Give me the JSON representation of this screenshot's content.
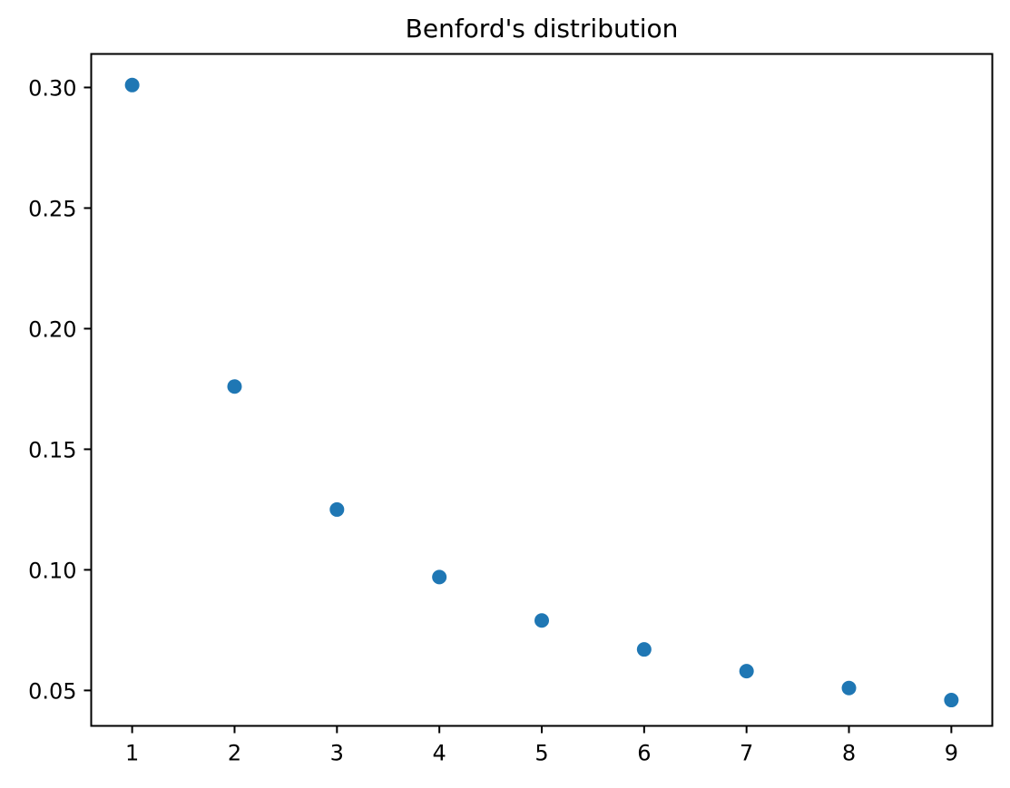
{
  "figure": {
    "background_color": "#ffffff"
  },
  "chart_data": {
    "type": "scatter",
    "title": "Benford's distribution",
    "xlabel": "",
    "ylabel": "",
    "x": [
      1,
      2,
      3,
      4,
      5,
      6,
      7,
      8,
      9
    ],
    "y": [
      0.301,
      0.176,
      0.125,
      0.097,
      0.079,
      0.067,
      0.058,
      0.051,
      0.046
    ],
    "xlim": [
      0.6,
      9.4
    ],
    "ylim": [
      0.0353,
      0.3139
    ],
    "xticks": [
      1,
      2,
      3,
      4,
      5,
      6,
      7,
      8,
      9
    ],
    "xtick_labels": [
      "1",
      "2",
      "3",
      "4",
      "5",
      "6",
      "7",
      "8",
      "9"
    ],
    "yticks": [
      0.05,
      0.1,
      0.15,
      0.2,
      0.25,
      0.3
    ],
    "ytick_labels": [
      "0.05",
      "0.10",
      "0.15",
      "0.20",
      "0.25",
      "0.30"
    ],
    "grid": false,
    "legend": false,
    "marker_color": "#1f77b4",
    "marker_radius_px": 8,
    "axis_color": "#000000",
    "text_color": "#000000"
  }
}
